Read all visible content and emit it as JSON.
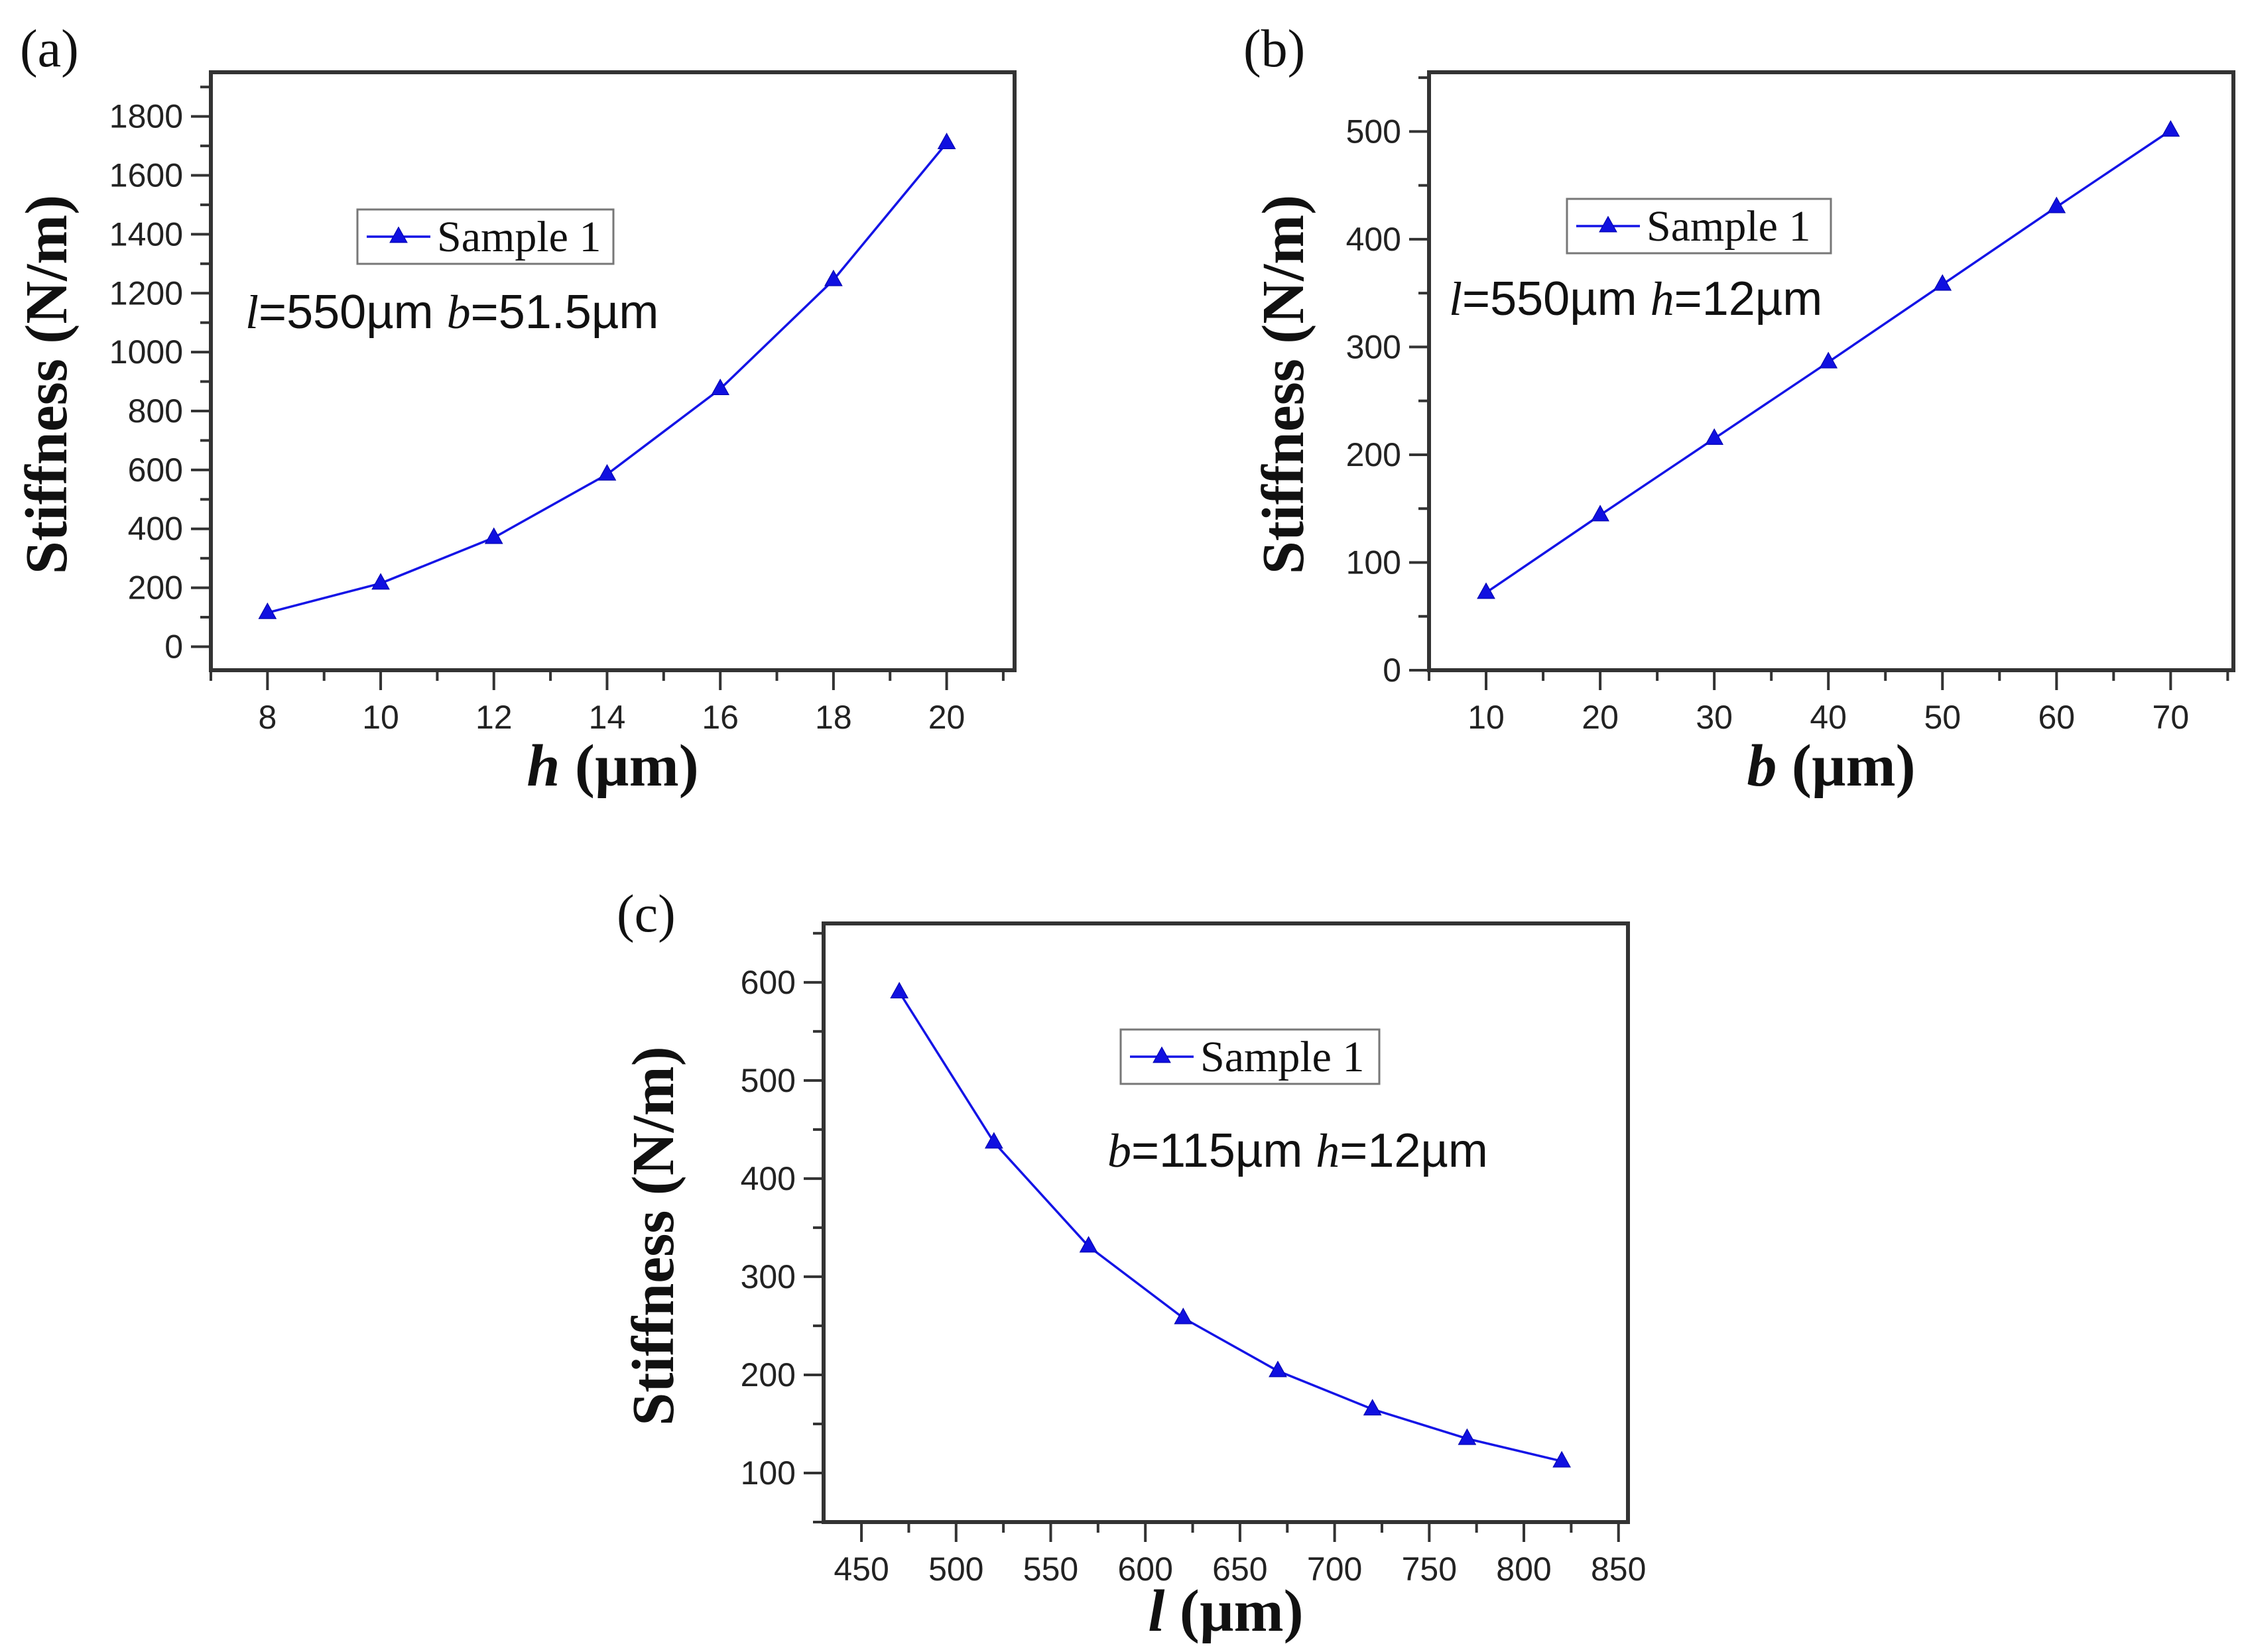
{
  "colors": {
    "series": "#1414e6",
    "marker": "#1010e0",
    "axis": "#333333"
  },
  "chart_data": [
    {
      "id": "a",
      "type": "line",
      "panel_label": "(a)",
      "legend": "Sample 1",
      "annotation": {
        "v1": "l",
        "eq1": "=550µm ",
        "v2": "b",
        "eq2": "=51.5µm"
      },
      "xlabel": {
        "var": "h",
        "unit": " (µm)"
      },
      "ylabel": "Stiffness (N/m)",
      "x": [
        8,
        10,
        12,
        14,
        16,
        18,
        20
      ],
      "series": [
        {
          "name": "Sample 1",
          "values": [
            115,
            215,
            370,
            585,
            875,
            1245,
            1710
          ]
        }
      ],
      "xlim": [
        7,
        21.2
      ],
      "ylim": [
        -80,
        1950
      ],
      "xticks": [
        "8",
        "10",
        "12",
        "14",
        "16",
        "18",
        "20"
      ],
      "yticks": [
        "0",
        "200",
        "400",
        "600",
        "800",
        "1000",
        "1200",
        "1400",
        "1600",
        "1800"
      ]
    },
    {
      "id": "b",
      "type": "line",
      "panel_label": "(b)",
      "legend": "Sample 1",
      "annotation": {
        "v1": "l",
        "eq1": "=550µm ",
        "v2": "h",
        "eq2": "=12µm"
      },
      "xlabel": {
        "var": "b",
        "unit": " (µm)"
      },
      "ylabel": "Stiffness (N/m)",
      "x": [
        10,
        20,
        30,
        40,
        50,
        60,
        70
      ],
      "series": [
        {
          "name": "Sample 1",
          "values": [
            72,
            144,
            215,
            286,
            358,
            430,
            501
          ]
        }
      ],
      "xlim": [
        5,
        75.5
      ],
      "ylim": [
        0,
        555
      ],
      "xticks": [
        "10",
        "20",
        "30",
        "40",
        "50",
        "60",
        "70"
      ],
      "yticks": [
        "0",
        "100",
        "200",
        "300",
        "400",
        "500"
      ]
    },
    {
      "id": "c",
      "type": "line",
      "panel_label": "(c)",
      "legend": "Sample 1",
      "annotation": {
        "v1": "b",
        "eq1": "=115µm ",
        "v2": "h",
        "eq2": "=12µm"
      },
      "xlabel": {
        "var": "l",
        "unit": " (µm)"
      },
      "ylabel": "Stiffness (N/m)",
      "x": [
        470,
        520,
        570,
        620,
        670,
        720,
        770,
        820
      ],
      "series": [
        {
          "name": "Sample 1",
          "values": [
            590,
            437,
            331,
            258,
            204,
            165,
            135,
            112
          ]
        }
      ],
      "xlim": [
        430,
        855
      ],
      "ylim": [
        50,
        660
      ],
      "xticks": [
        "450",
        "500",
        "550",
        "600",
        "650",
        "700",
        "750",
        "800",
        "850"
      ],
      "yticks": [
        "100",
        "200",
        "300",
        "400",
        "500",
        "600"
      ]
    }
  ]
}
